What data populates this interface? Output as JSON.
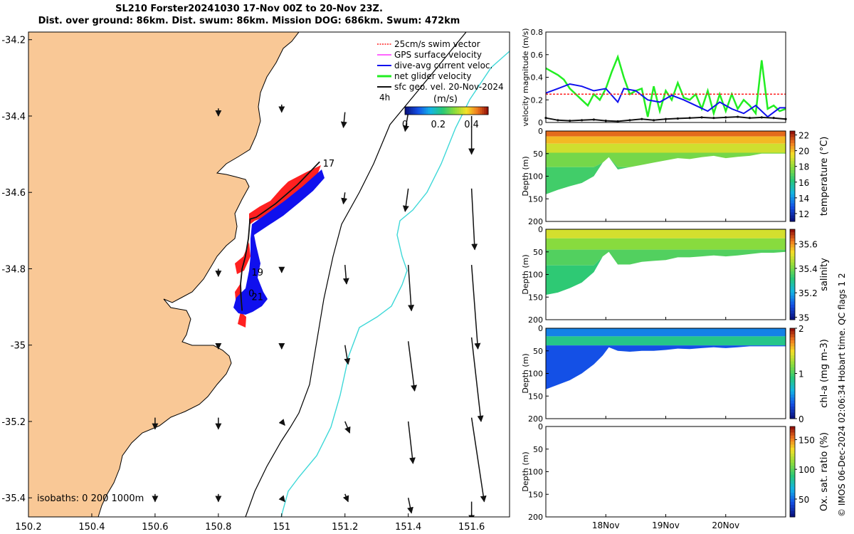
{
  "title": {
    "line1": "SL210 Forster20241030 17-Nov 00Z to 20-Nov 23Z.",
    "line2": "Dist. over ground: 86km. Dist. swum: 86km. Mission DOG: 686km. Swum: 472km"
  },
  "credit": "© IMOS 06-Dec-2024 02:06:34 Hobart time. QC flags 1  2",
  "colors": {
    "land": "#f9c896",
    "swim": "#ff2020",
    "current": "#1010ee",
    "net": "#22ee22",
    "geo": "#111111",
    "gps": "#ff33ff",
    "isobath_cyan": "#3ed8d8"
  },
  "chart_data": [
    {
      "type": "map",
      "title": "glider track map",
      "x_ticks": [
        "150.2",
        "150.4",
        "150.6",
        "150.8",
        "151",
        "151.2",
        "151.4",
        "151.6"
      ],
      "y_ticks": [
        "-34.2",
        "-34.4",
        "-34.6",
        "-34.8",
        "-35",
        "-35.2",
        "-35.4"
      ],
      "xlim": [
        150.2,
        151.72
      ],
      "ylim": [
        -35.45,
        -34.18
      ],
      "legend": [
        {
          "label": "25cm/s swim vector",
          "color": "#ff2020"
        },
        {
          "label": "GPS surface velocity",
          "color": "#ff33ff"
        },
        {
          "label": "dive-avg current veloc.",
          "color": "#1010ee"
        },
        {
          "label": "net glider velocity",
          "color": "#22ee22"
        },
        {
          "label": "sfc geo. vel. 20-Nov-2024",
          "color": "#111111"
        }
      ],
      "legend_extra": "4h",
      "colorbar": {
        "label": "(m/s)",
        "ticks": [
          "0",
          "0.2",
          "0.4"
        ],
        "range": [
          0,
          0.5
        ]
      },
      "isobath_label": "isobaths: 0   200  1000m",
      "day_labels": [
        {
          "text": "17",
          "lon": 151.13,
          "lat": -34.525
        },
        {
          "text": "19",
          "lon": 150.905,
          "lat": -34.81
        },
        {
          "text": "0",
          "lon": 150.895,
          "lat": -34.865
        },
        {
          "text": "21",
          "lon": 150.905,
          "lat": -34.875
        }
      ],
      "track": [
        [
          151.12,
          -34.52
        ],
        [
          151.05,
          -34.58
        ],
        [
          150.98,
          -34.63
        ],
        [
          150.92,
          -34.665
        ],
        [
          150.9,
          -34.67
        ],
        [
          150.895,
          -34.72
        ],
        [
          150.885,
          -34.77
        ],
        [
          150.875,
          -34.8
        ],
        [
          150.87,
          -34.84
        ],
        [
          150.872,
          -34.88
        ],
        [
          150.875,
          -34.91
        ],
        [
          150.87,
          -34.86
        ]
      ],
      "current_vectors": [
        [
          150.8,
          -34.38,
          0.0,
          -0.02
        ],
        [
          151.0,
          -34.37,
          0.0,
          -0.02
        ],
        [
          151.2,
          -34.39,
          -0.005,
          -0.04
        ],
        [
          151.4,
          -34.39,
          -0.01,
          -0.05
        ],
        [
          151.6,
          -34.4,
          0.0,
          -0.1
        ],
        [
          151.2,
          -34.6,
          -0.005,
          -0.03
        ],
        [
          151.4,
          -34.59,
          -0.01,
          -0.06
        ],
        [
          151.6,
          -34.59,
          0.01,
          -0.16
        ],
        [
          150.8,
          -34.8,
          0.0,
          -0.02
        ],
        [
          151.0,
          -34.8,
          0.0,
          -0.01
        ],
        [
          151.2,
          -34.79,
          0.005,
          -0.05
        ],
        [
          151.4,
          -34.79,
          0.01,
          -0.12
        ],
        [
          151.6,
          -34.79,
          0.02,
          -0.22
        ],
        [
          150.8,
          -35.0,
          0.0,
          -0.01
        ],
        [
          151.0,
          -35.0,
          0.0,
          -0.01
        ],
        [
          151.2,
          -35.0,
          0.01,
          -0.05
        ],
        [
          151.4,
          -34.99,
          0.02,
          -0.13
        ],
        [
          151.6,
          -34.98,
          0.03,
          -0.22
        ],
        [
          150.6,
          -35.19,
          0.0,
          -0.03
        ],
        [
          150.8,
          -35.19,
          0.0,
          -0.03
        ],
        [
          151.0,
          -35.2,
          0.01,
          -0.01
        ],
        [
          151.2,
          -35.2,
          0.015,
          -0.03
        ],
        [
          151.4,
          -35.2,
          0.015,
          -0.11
        ],
        [
          151.6,
          -35.19,
          0.04,
          -0.22
        ],
        [
          150.6,
          -35.39,
          0.0,
          -0.02
        ],
        [
          150.8,
          -35.39,
          0.0,
          -0.02
        ],
        [
          151.0,
          -35.4,
          0.01,
          -0.01
        ],
        [
          151.2,
          -35.39,
          0.01,
          -0.02
        ],
        [
          151.4,
          -35.4,
          0.01,
          -0.04
        ],
        [
          151.6,
          -35.41,
          0.0,
          -0.05
        ]
      ]
    },
    {
      "type": "line",
      "ylabel": "velocity magnitude (m/s)",
      "y_ticks": [
        "0",
        "0.2",
        "0.4",
        "0.6",
        "0.8"
      ],
      "ylim": [
        0,
        0.8
      ],
      "xlim": [
        0,
        4
      ],
      "series": [
        {
          "name": "net glider velocity",
          "color": "#22ee22",
          "x": [
            0,
            0.1,
            0.2,
            0.3,
            0.4,
            0.5,
            0.6,
            0.7,
            0.8,
            0.9,
            1.0,
            1.1,
            1.2,
            1.3,
            1.4,
            1.5,
            1.6,
            1.7,
            1.8,
            1.9,
            2.0,
            2.1,
            2.2,
            2.3,
            2.4,
            2.5,
            2.6,
            2.7,
            2.8,
            2.9,
            3.0,
            3.1,
            3.2,
            3.3,
            3.4,
            3.5,
            3.6,
            3.7,
            3.8,
            3.9,
            4.0
          ],
          "y": [
            0.48,
            0.45,
            0.42,
            0.38,
            0.3,
            0.25,
            0.2,
            0.15,
            0.25,
            0.2,
            0.3,
            0.45,
            0.58,
            0.4,
            0.25,
            0.28,
            0.3,
            0.05,
            0.32,
            0.1,
            0.28,
            0.2,
            0.35,
            0.22,
            0.2,
            0.25,
            0.12,
            0.28,
            0.08,
            0.25,
            0.1,
            0.25,
            0.12,
            0.2,
            0.15,
            0.08,
            0.55,
            0.12,
            0.15,
            0.1,
            0.12
          ]
        },
        {
          "name": "dive-avg current veloc.",
          "color": "#1010ee",
          "x": [
            0,
            0.2,
            0.4,
            0.6,
            0.8,
            1.0,
            1.2,
            1.3,
            1.5,
            1.7,
            1.9,
            2.1,
            2.3,
            2.5,
            2.7,
            2.9,
            3.1,
            3.3,
            3.5,
            3.7,
            3.9,
            4.0
          ],
          "y": [
            0.26,
            0.3,
            0.34,
            0.32,
            0.28,
            0.3,
            0.18,
            0.3,
            0.28,
            0.2,
            0.18,
            0.24,
            0.2,
            0.15,
            0.1,
            0.18,
            0.12,
            0.08,
            0.15,
            0.05,
            0.13,
            0.13
          ]
        },
        {
          "name": "swim",
          "color": "#ff2020",
          "x": [
            0,
            4
          ],
          "y": [
            0.25,
            0.25
          ]
        },
        {
          "name": "sfc geo",
          "color": "#111111",
          "x": [
            0,
            0.2,
            0.4,
            0.6,
            0.8,
            1.0,
            1.2,
            1.4,
            1.6,
            1.8,
            2.0,
            2.2,
            2.4,
            2.6,
            2.8,
            3.0,
            3.2,
            3.4,
            3.6,
            3.8,
            4.0
          ],
          "y": [
            0.04,
            0.02,
            0.015,
            0.02,
            0.025,
            0.015,
            0.01,
            0.02,
            0.03,
            0.02,
            0.03,
            0.035,
            0.04,
            0.045,
            0.04,
            0.045,
            0.05,
            0.04,
            0.045,
            0.04,
            0.03
          ]
        }
      ]
    },
    {
      "type": "heatmap",
      "ylabel": "Depth (m)",
      "y_ticks": [
        "0",
        "50",
        "100",
        "150",
        "200"
      ],
      "ylim": [
        0,
        200
      ],
      "colorbar": {
        "label": "temperature (°C)",
        "ticks": [
          "12",
          "14",
          "16",
          "18",
          "20",
          "22"
        ],
        "range": [
          11,
          22.5
        ]
      },
      "profile_x": [
        0,
        0.2,
        0.4,
        0.6,
        0.8,
        0.95,
        1.05,
        1.2,
        1.4,
        1.6,
        1.8,
        2.0,
        2.2,
        2.4,
        2.6,
        2.8,
        3.0,
        3.2,
        3.4,
        3.6,
        3.8,
        4.0
      ],
      "bottom_depth": [
        140,
        130,
        122,
        115,
        100,
        70,
        58,
        85,
        80,
        75,
        70,
        65,
        60,
        62,
        58,
        55,
        60,
        57,
        55,
        50,
        50,
        50
      ],
      "layers": [
        {
          "depth": [
            0,
            12
          ],
          "value": 21.3
        },
        {
          "depth": [
            12,
            28
          ],
          "value": 20.2
        },
        {
          "depth": [
            28,
            48
          ],
          "value": 19.0
        },
        {
          "depth": [
            48,
            80
          ],
          "value": 17.5
        },
        {
          "depth": [
            80,
            200
          ],
          "value": 16.6
        }
      ]
    },
    {
      "type": "heatmap",
      "ylabel": "Depth (m)",
      "y_ticks": [
        "0",
        "50",
        "100",
        "150",
        "200"
      ],
      "ylim": [
        0,
        200
      ],
      "colorbar": {
        "label": "salinity",
        "ticks": [
          "35",
          "35.2",
          "35.4",
          "35.6"
        ],
        "range": [
          34.98,
          35.72
        ]
      },
      "profile_x": [
        0,
        0.2,
        0.4,
        0.6,
        0.8,
        0.95,
        1.05,
        1.2,
        1.4,
        1.6,
        1.8,
        2.0,
        2.2,
        2.4,
        2.6,
        2.8,
        3.0,
        3.2,
        3.4,
        3.6,
        3.8,
        4.0
      ],
      "bottom_depth": [
        145,
        140,
        130,
        118,
        95,
        60,
        50,
        78,
        78,
        72,
        70,
        68,
        62,
        62,
        60,
        58,
        60,
        58,
        55,
        52,
        52,
        50
      ],
      "layers": [
        {
          "depth": [
            0,
            20
          ],
          "value": 35.5
        },
        {
          "depth": [
            20,
            45
          ],
          "value": 35.42
        },
        {
          "depth": [
            45,
            80
          ],
          "value": 35.36
        },
        {
          "depth": [
            80,
            200
          ],
          "value": 35.32
        }
      ]
    },
    {
      "type": "heatmap",
      "ylabel": "Depth (m)",
      "y_ticks": [
        "0",
        "50",
        "100",
        "150",
        "200"
      ],
      "ylim": [
        0,
        200
      ],
      "colorbar": {
        "label": "chl-a (mg m-3)",
        "ticks": [
          "0",
          "1",
          "2"
        ],
        "range": [
          0,
          2
        ]
      },
      "profile_x": [
        0,
        0.2,
        0.4,
        0.6,
        0.8,
        0.95,
        1.05,
        1.2,
        1.4,
        1.6,
        1.8,
        2.0,
        2.2,
        2.4,
        2.6,
        2.8,
        3.0,
        3.2,
        3.4,
        3.6,
        3.8,
        4.0
      ],
      "bottom_depth": [
        135,
        125,
        115,
        100,
        80,
        60,
        42,
        50,
        52,
        50,
        50,
        48,
        45,
        46,
        44,
        42,
        44,
        42,
        40,
        40,
        40,
        40
      ],
      "layers": [
        {
          "depth": [
            0,
            18
          ],
          "value": 0.45
        },
        {
          "depth": [
            18,
            38
          ],
          "value": 0.85
        },
        {
          "depth": [
            38,
            200
          ],
          "value": 0.3
        }
      ]
    },
    {
      "type": "heatmap",
      "ylabel": "Depth (m)",
      "y_ticks": [
        "0",
        "50",
        "100",
        "150",
        "200"
      ],
      "ylim": [
        0,
        200
      ],
      "x_ticks": [
        "18Nov",
        "19Nov",
        "20Nov"
      ],
      "x_tick_pos": [
        1,
        2,
        3
      ],
      "colorbar": {
        "label": "Ox. sat. ratio (%)",
        "ticks": [
          "50",
          "100",
          "150"
        ],
        "range": [
          20,
          172
        ]
      },
      "profile_x": [],
      "bottom_depth": [],
      "layers": []
    }
  ]
}
